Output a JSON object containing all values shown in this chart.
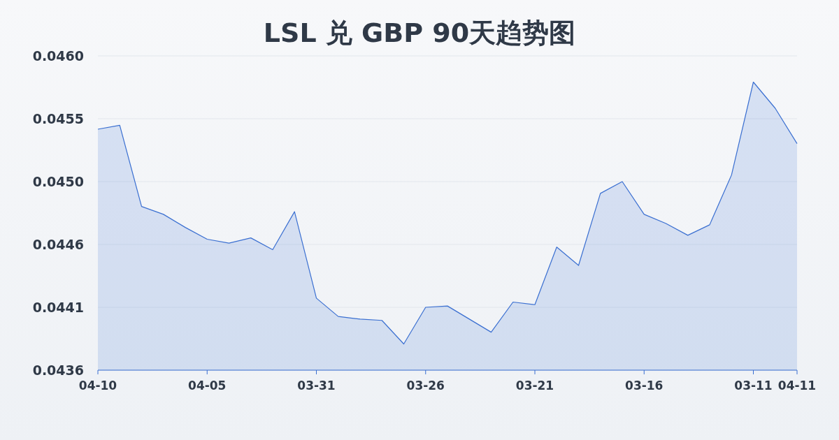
{
  "chart_data": {
    "type": "area",
    "title": "LSL 兑 GBP 90天趋势图",
    "color": "#3a6fd1",
    "grid": "y",
    "categories": [
      "04-10",
      null,
      null,
      null,
      null,
      "04-05",
      null,
      null,
      null,
      null,
      "03-31",
      null,
      null,
      null,
      null,
      "03-26",
      null,
      null,
      null,
      null,
      "03-21",
      null,
      null,
      null,
      null,
      "03-16",
      null,
      null,
      null,
      null,
      "03-11",
      null,
      "04-11"
    ],
    "values": [
      0.04544,
      0.04547,
      0.04485,
      0.04479,
      0.04469,
      0.0446,
      0.04457,
      0.04461,
      0.04452,
      0.04481,
      0.04415,
      0.04401,
      0.04399,
      0.04398,
      0.0438,
      0.04408,
      0.04409,
      0.04399,
      0.04389,
      0.04412,
      0.0441,
      0.04454,
      0.0444,
      0.04495,
      0.04504,
      0.04479,
      0.04472,
      0.04463,
      0.04471,
      0.04509,
      0.0458,
      0.0456,
      0.04533
    ],
    "ylim": [
      0.0436,
      0.046
    ],
    "yticks": [
      0.0436,
      {
        "value": 0.04408,
        "label": "0.0441"
      },
      {
        "value": 0.04456,
        "label": "0.0446"
      },
      {
        "value": 0.04504,
        "label": "0.0450"
      },
      {
        "value": 0.04552,
        "label": "0.0455"
      },
      {
        "value": 0.046,
        "label": "0.0460"
      }
    ]
  }
}
